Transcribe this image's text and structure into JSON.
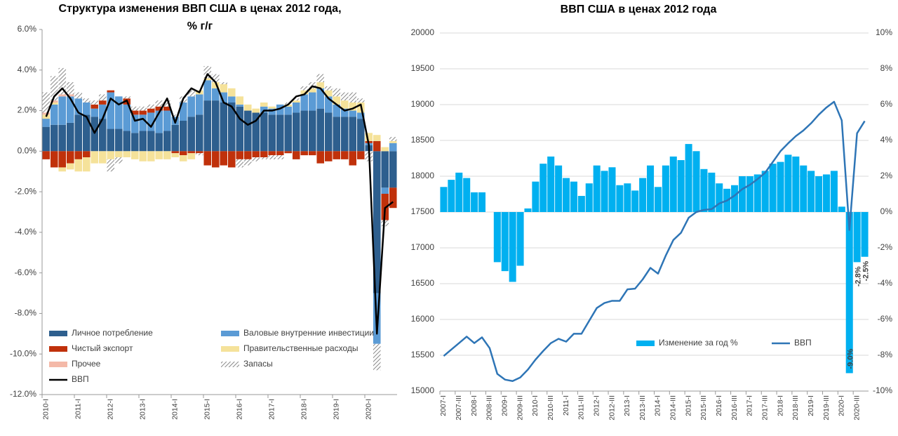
{
  "chart_data": [
    {
      "type": "bar",
      "stacked": true,
      "title": [
        "Структура изменения ВВП США в ценах 2012 года,",
        "% г/г"
      ],
      "categories": [
        "2010-I",
        null,
        null,
        null,
        "2011-I",
        null,
        null,
        null,
        "2012-I",
        null,
        null,
        null,
        "2013-I",
        null,
        null,
        null,
        "2014-I",
        null,
        null,
        null,
        "2015-I",
        null,
        null,
        null,
        "2016-I",
        null,
        null,
        null,
        "2017-I",
        null,
        null,
        null,
        "2018-I",
        null,
        null,
        null,
        "2019-I",
        null,
        null,
        null,
        "2020-I",
        null,
        null,
        null
      ],
      "ylim": [
        -12,
        6
      ],
      "yticks": [
        {
          "value": -12,
          "label": "-12.0%"
        },
        {
          "value": -10,
          "label": "-10.0%"
        },
        {
          "value": -8,
          "label": "-8.0%"
        },
        {
          "value": -6,
          "label": "-6.0%"
        },
        {
          "value": -4,
          "label": "-4.0%"
        },
        {
          "value": -2,
          "label": "-2.0%"
        },
        {
          "value": 0,
          "label": "0.0%"
        },
        {
          "value": 2,
          "label": "2.0%"
        },
        {
          "value": 4,
          "label": "4.0%"
        },
        {
          "value": 6,
          "label": "6.0%"
        }
      ],
      "series": [
        {
          "name": "Личное потребление",
          "color": "#2e5f8e",
          "values": [
            1.2,
            1.3,
            1.3,
            1.4,
            1.8,
            1.8,
            1.7,
            1.6,
            1.1,
            1.1,
            1.0,
            0.9,
            1.0,
            1.0,
            0.9,
            1.0,
            1.3,
            1.5,
            1.7,
            1.8,
            2.5,
            2.5,
            2.4,
            2.4,
            2.2,
            2.0,
            1.9,
            1.9,
            1.8,
            1.8,
            1.8,
            1.9,
            2.0,
            2.0,
            2.1,
            1.9,
            1.7,
            1.7,
            1.7,
            1.6,
            0.3,
            -7.0,
            -1.8,
            -1.8
          ]
        },
        {
          "name": "Валовые внутренние инвестиции",
          "color": "#5b9bd5",
          "values": [
            0.4,
            1.0,
            1.4,
            1.3,
            0.8,
            0.6,
            0.4,
            0.7,
            1.8,
            1.6,
            1.3,
            0.9,
            0.8,
            0.9,
            1.1,
            1.0,
            0.4,
            0.9,
            1.0,
            1.0,
            1.0,
            0.6,
            0.5,
            0.3,
            0.1,
            0.0,
            0.0,
            0.3,
            0.3,
            0.5,
            0.4,
            0.5,
            0.8,
            0.9,
            1.0,
            0.8,
            0.6,
            0.4,
            0.3,
            0.3,
            0.1,
            -2.5,
            -0.3,
            0.4
          ]
        },
        {
          "name": "Чистый экспорт",
          "color": "#c0310b",
          "values": [
            -0.4,
            -0.8,
            -0.8,
            -0.6,
            -0.4,
            -0.3,
            0.2,
            0.2,
            0.1,
            0.0,
            0.3,
            0.2,
            0.2,
            0.2,
            0.2,
            0.2,
            -0.1,
            -0.2,
            -0.1,
            -0.1,
            -0.7,
            -0.8,
            -0.7,
            -0.8,
            -0.4,
            -0.4,
            -0.3,
            -0.3,
            -0.2,
            -0.2,
            -0.1,
            -0.4,
            -0.2,
            -0.2,
            -0.6,
            -0.5,
            -0.4,
            -0.4,
            -0.7,
            -0.4,
            0.1,
            0.5,
            -1.3,
            -1.0
          ]
        },
        {
          "name": "Правительственные расходы",
          "color": "#f5e29a",
          "values": [
            0.2,
            0.1,
            -0.2,
            -0.3,
            -0.6,
            -0.7,
            -0.6,
            -0.6,
            -0.4,
            -0.3,
            -0.3,
            -0.4,
            -0.5,
            -0.5,
            -0.4,
            -0.4,
            -0.2,
            -0.3,
            -0.3,
            0.2,
            0.1,
            0.3,
            0.4,
            0.4,
            0.4,
            0.3,
            0.2,
            0.2,
            0.1,
            0.0,
            0.1,
            0.1,
            0.2,
            0.2,
            0.3,
            0.3,
            0.4,
            0.4,
            0.4,
            0.5,
            0.4,
            0.3,
            0.2,
            0.1
          ]
        },
        {
          "name": "Прочее",
          "color": "#f4b9a8",
          "values": [
            0.1,
            0.1,
            0.1,
            0.1,
            0.0,
            0.0,
            0.0,
            0.0,
            0.0,
            0.0,
            0.0,
            0.0,
            0.0,
            0.0,
            0.0,
            0.0,
            0.0,
            0.0,
            0.0,
            0.0,
            0.0,
            0.0,
            0.0,
            0.0,
            0.0,
            0.0,
            0.0,
            0.0,
            0.0,
            0.0,
            0.0,
            0.0,
            0.0,
            0.0,
            0.0,
            0.0,
            0.0,
            0.0,
            0.0,
            0.0,
            0.0,
            0.0,
            0.0,
            0.0
          ]
        },
        {
          "name": "Запасы",
          "color": "#999999",
          "pattern": "hatch",
          "values": [
            1.0,
            1.2,
            1.3,
            0.6,
            0.3,
            0.2,
            0.2,
            0.3,
            -0.6,
            -0.3,
            0.1,
            0.2,
            0.2,
            0.2,
            0.3,
            0.3,
            0.1,
            0.3,
            0.3,
            -0.1,
            0.6,
            0.4,
            0.1,
            0.0,
            -0.4,
            -0.3,
            -0.2,
            -0.1,
            -0.2,
            -0.2,
            0.1,
            0.1,
            0.2,
            0.3,
            0.4,
            0.2,
            0.4,
            0.4,
            0.5,
            0.2,
            -0.5,
            -1.3,
            -0.3,
            0.2
          ]
        },
        {
          "name": "ВВП",
          "type": "line",
          "color": "#000000",
          "values": [
            1.7,
            2.7,
            3.1,
            2.6,
            1.9,
            1.7,
            0.9,
            1.6,
            2.6,
            2.3,
            2.5,
            1.5,
            1.6,
            1.2,
            1.9,
            2.6,
            1.4,
            2.6,
            3.1,
            2.9,
            3.8,
            3.4,
            2.4,
            2.2,
            1.6,
            1.3,
            1.5,
            2.0,
            2.0,
            2.1,
            2.3,
            2.7,
            2.8,
            3.2,
            3.1,
            2.6,
            2.3,
            2.0,
            2.1,
            2.3,
            0.3,
            -9.0,
            -2.8,
            -2.5
          ]
        }
      ]
    },
    {
      "type": "bar",
      "title": [
        "ВВП США в ценах 2012 года"
      ],
      "categories": [
        "2007-I",
        null,
        "2007-III",
        null,
        "2008-I",
        null,
        "2008-III",
        null,
        "2009-I",
        null,
        "2009-III",
        null,
        "2010-I",
        null,
        "2010-III",
        null,
        "2011-I",
        null,
        "2011-III",
        null,
        "2012-I",
        null,
        "2012-III",
        null,
        "2013-I",
        null,
        "2013-III",
        null,
        "2014-I",
        null,
        "2014-III",
        null,
        "2015-I",
        null,
        "2015-III",
        null,
        "2016-I",
        null,
        "2016-III",
        null,
        "2017-I",
        null,
        "2017-III",
        null,
        "2018-I",
        null,
        "2018-III",
        null,
        "2019-I",
        null,
        "2019-III",
        null,
        "2020-I",
        null,
        "2020-III",
        null
      ],
      "ylim": [
        15000,
        20000
      ],
      "yticks": [
        15000,
        15500,
        16000,
        16500,
        17000,
        17500,
        18000,
        18500,
        19000,
        19500,
        20000
      ],
      "y2lim": [
        -10,
        10
      ],
      "y2ticks": [
        {
          "value": -10,
          "label": "-10%"
        },
        {
          "value": -8,
          "label": "-8%"
        },
        {
          "value": -6,
          "label": "-6%"
        },
        {
          "value": -4,
          "label": "-4%"
        },
        {
          "value": -2,
          "label": "-2%"
        },
        {
          "value": 0,
          "label": "0%"
        },
        {
          "value": 2,
          "label": "2%"
        },
        {
          "value": 4,
          "label": "4%"
        },
        {
          "value": 6,
          "label": "6%"
        },
        {
          "value": 8,
          "label": "8%"
        },
        {
          "value": 10,
          "label": "10%"
        }
      ],
      "grid": true,
      "series": [
        {
          "name": "Изменение за год %",
          "color": "#00b0f0",
          "axis": "y2",
          "values": [
            1.4,
            1.8,
            2.2,
            1.9,
            1.1,
            1.1,
            0.0,
            -2.8,
            -3.3,
            -3.9,
            -3.0,
            0.2,
            1.7,
            2.7,
            3.1,
            2.6,
            1.9,
            1.7,
            0.9,
            1.6,
            2.6,
            2.3,
            2.5,
            1.5,
            1.6,
            1.2,
            1.9,
            2.6,
            1.4,
            2.6,
            3.1,
            2.9,
            3.8,
            3.4,
            2.4,
            2.2,
            1.6,
            1.3,
            1.5,
            2.0,
            2.0,
            2.1,
            2.3,
            2.7,
            2.8,
            3.2,
            3.1,
            2.6,
            2.3,
            2.0,
            2.1,
            2.3,
            0.3,
            -9.0,
            -2.8,
            -2.5
          ],
          "value_labels": [
            null,
            null,
            null,
            null,
            null,
            null,
            null,
            null,
            null,
            null,
            null,
            null,
            null,
            null,
            null,
            null,
            null,
            null,
            null,
            null,
            null,
            null,
            null,
            null,
            null,
            null,
            null,
            null,
            null,
            null,
            null,
            null,
            null,
            null,
            null,
            null,
            null,
            null,
            null,
            null,
            null,
            null,
            null,
            null,
            null,
            null,
            null,
            null,
            null,
            null,
            null,
            null,
            null,
            "-9.0%",
            "-2.8%",
            "-2.5%"
          ]
        },
        {
          "name": "ВВП",
          "type": "line",
          "color": "#2e75b6",
          "values": [
            15490,
            15580,
            15670,
            15760,
            15670,
            15750,
            15600,
            15240,
            15160,
            15140,
            15190,
            15300,
            15440,
            15560,
            15670,
            15730,
            15690,
            15800,
            15800,
            15980,
            16160,
            16230,
            16260,
            16260,
            16420,
            16430,
            16560,
            16720,
            16640,
            16890,
            17110,
            17210,
            17420,
            17500,
            17530,
            17540,
            17620,
            17660,
            17730,
            17820,
            17880,
            17960,
            18050,
            18200,
            18350,
            18460,
            18560,
            18640,
            18740,
            18860,
            18960,
            19040,
            18780,
            17250,
            18600,
            18770
          ]
        }
      ]
    }
  ]
}
